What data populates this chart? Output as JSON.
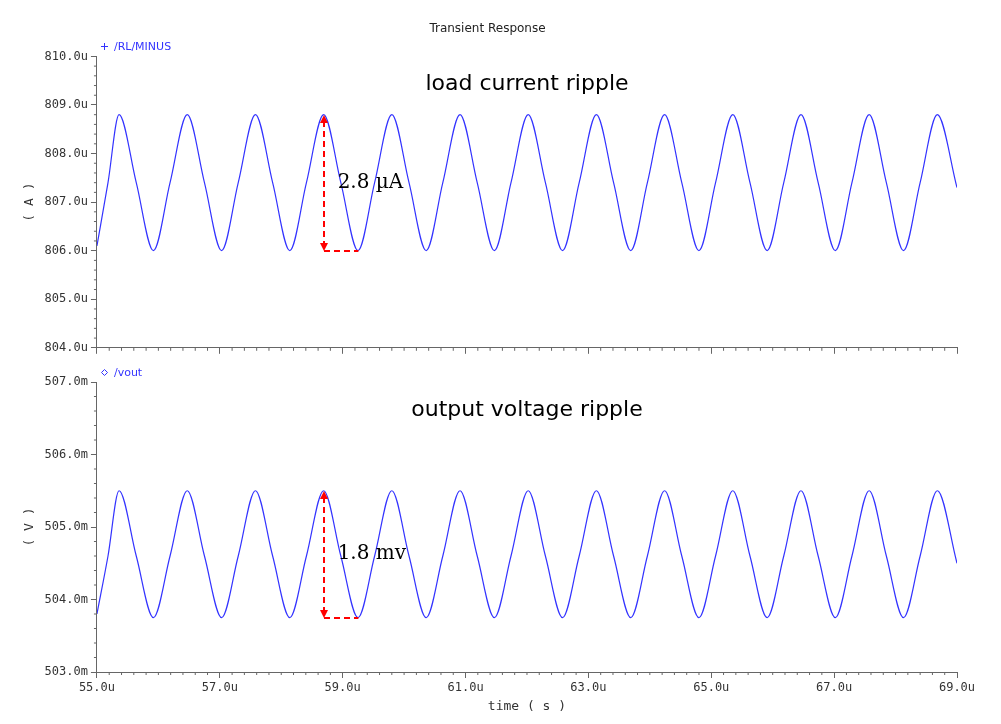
{
  "chart_data": [
    {
      "type": "line",
      "title": "Transient Response",
      "ylabel": "( A )",
      "tick_labels": "y",
      "grid": false,
      "marker": "none",
      "line_style": "solid",
      "xlim": [
        55,
        69
      ],
      "xticks": [
        55,
        57,
        59,
        61,
        63,
        65,
        67,
        69
      ],
      "ylim": [
        804,
        810
      ],
      "yticks": [
        {
          "value": 804,
          "label": "804.0u"
        },
        {
          "value": 805,
          "label": "805.0u"
        },
        {
          "value": 806,
          "label": "806.0u"
        },
        {
          "value": 807,
          "label": "807.0u"
        },
        {
          "value": 808,
          "label": "808.0u"
        },
        {
          "value": 809,
          "label": "809.0u"
        },
        {
          "value": 810,
          "label": "810.0u"
        }
      ],
      "annotations": [
        "load current ripple",
        "2.8 µA"
      ],
      "series": [
        {
          "name": "/RL/MINUS",
          "color": "#3333ff",
          "x": [
            55.0,
            55.18,
            55.36,
            55.64,
            55.92,
            56.19,
            56.47,
            56.75,
            57.03,
            57.3,
            57.58,
            57.86,
            58.14,
            58.41,
            58.69,
            58.97,
            59.25,
            59.52,
            59.8,
            60.08,
            60.36,
            60.63,
            60.91,
            61.19,
            61.47,
            61.74,
            62.02,
            62.3,
            62.58,
            62.85,
            63.13,
            63.41,
            63.69,
            63.96,
            64.24,
            64.52,
            64.8,
            65.07,
            65.35,
            65.63,
            65.91,
            66.18,
            66.46,
            66.74,
            67.02,
            67.29,
            67.57,
            67.85,
            68.13,
            68.4,
            68.68,
            69.0
          ],
          "values": [
            806.1,
            807.4,
            808.8,
            807.4,
            806.0,
            807.4,
            808.8,
            807.4,
            806.0,
            807.4,
            808.8,
            807.4,
            806.0,
            807.4,
            808.8,
            807.4,
            806.0,
            807.4,
            808.8,
            807.4,
            806.0,
            807.4,
            808.8,
            807.4,
            806.0,
            807.4,
            808.8,
            807.4,
            806.0,
            807.4,
            808.8,
            807.4,
            806.0,
            807.4,
            808.8,
            807.4,
            806.0,
            807.4,
            808.8,
            807.4,
            806.0,
            807.4,
            808.8,
            807.4,
            806.0,
            807.4,
            808.8,
            807.4,
            806.0,
            807.4,
            808.8,
            807.3
          ]
        }
      ]
    },
    {
      "type": "line",
      "xlabel": "time ( s )",
      "ylabel": "( V )",
      "grid": false,
      "marker": "none",
      "line_style": "solid",
      "xlim": [
        55,
        69
      ],
      "xticks": [
        {
          "value": 55,
          "label": "55.0u"
        },
        {
          "value": 57,
          "label": "57.0u"
        },
        {
          "value": 59,
          "label": "59.0u"
        },
        {
          "value": 61,
          "label": "61.0u"
        },
        {
          "value": 63,
          "label": "63.0u"
        },
        {
          "value": 65,
          "label": "65.0u"
        },
        {
          "value": 67,
          "label": "67.0u"
        },
        {
          "value": 69,
          "label": "69.0u"
        }
      ],
      "ylim": [
        503,
        507
      ],
      "yticks": [
        {
          "value": 503,
          "label": "503.0m"
        },
        {
          "value": 504,
          "label": "504.0m"
        },
        {
          "value": 505,
          "label": "505.0m"
        },
        {
          "value": 506,
          "label": "506.0m"
        },
        {
          "value": 507,
          "label": "507.0m"
        }
      ],
      "annotations": [
        "output voltage ripple",
        "1.8 mv"
      ],
      "series": [
        {
          "name": "/vout",
          "color": "#3333ff",
          "x": [
            55.0,
            55.18,
            55.36,
            55.64,
            55.92,
            56.19,
            56.47,
            56.75,
            57.03,
            57.3,
            57.58,
            57.86,
            58.14,
            58.41,
            58.69,
            58.97,
            59.25,
            59.52,
            59.8,
            60.08,
            60.36,
            60.63,
            60.91,
            61.19,
            61.47,
            61.74,
            62.02,
            62.3,
            62.58,
            62.85,
            63.13,
            63.41,
            63.69,
            63.96,
            64.24,
            64.52,
            64.8,
            65.07,
            65.35,
            65.63,
            65.91,
            66.18,
            66.46,
            66.74,
            67.02,
            67.29,
            67.57,
            67.85,
            68.13,
            68.4,
            68.68,
            69.0
          ],
          "values": [
            503.8,
            504.6,
            505.5,
            504.6,
            503.75,
            504.6,
            505.5,
            504.6,
            503.75,
            504.6,
            505.5,
            504.6,
            503.75,
            504.6,
            505.5,
            504.6,
            503.75,
            504.6,
            505.5,
            504.6,
            503.75,
            504.6,
            505.5,
            504.6,
            503.75,
            504.6,
            505.5,
            504.6,
            503.75,
            504.6,
            505.5,
            504.6,
            503.75,
            504.6,
            505.5,
            504.6,
            503.75,
            504.6,
            505.5,
            504.6,
            503.75,
            504.6,
            505.5,
            504.6,
            503.75,
            504.6,
            505.5,
            504.6,
            503.75,
            504.6,
            505.5,
            504.5
          ]
        }
      ]
    }
  ]
}
